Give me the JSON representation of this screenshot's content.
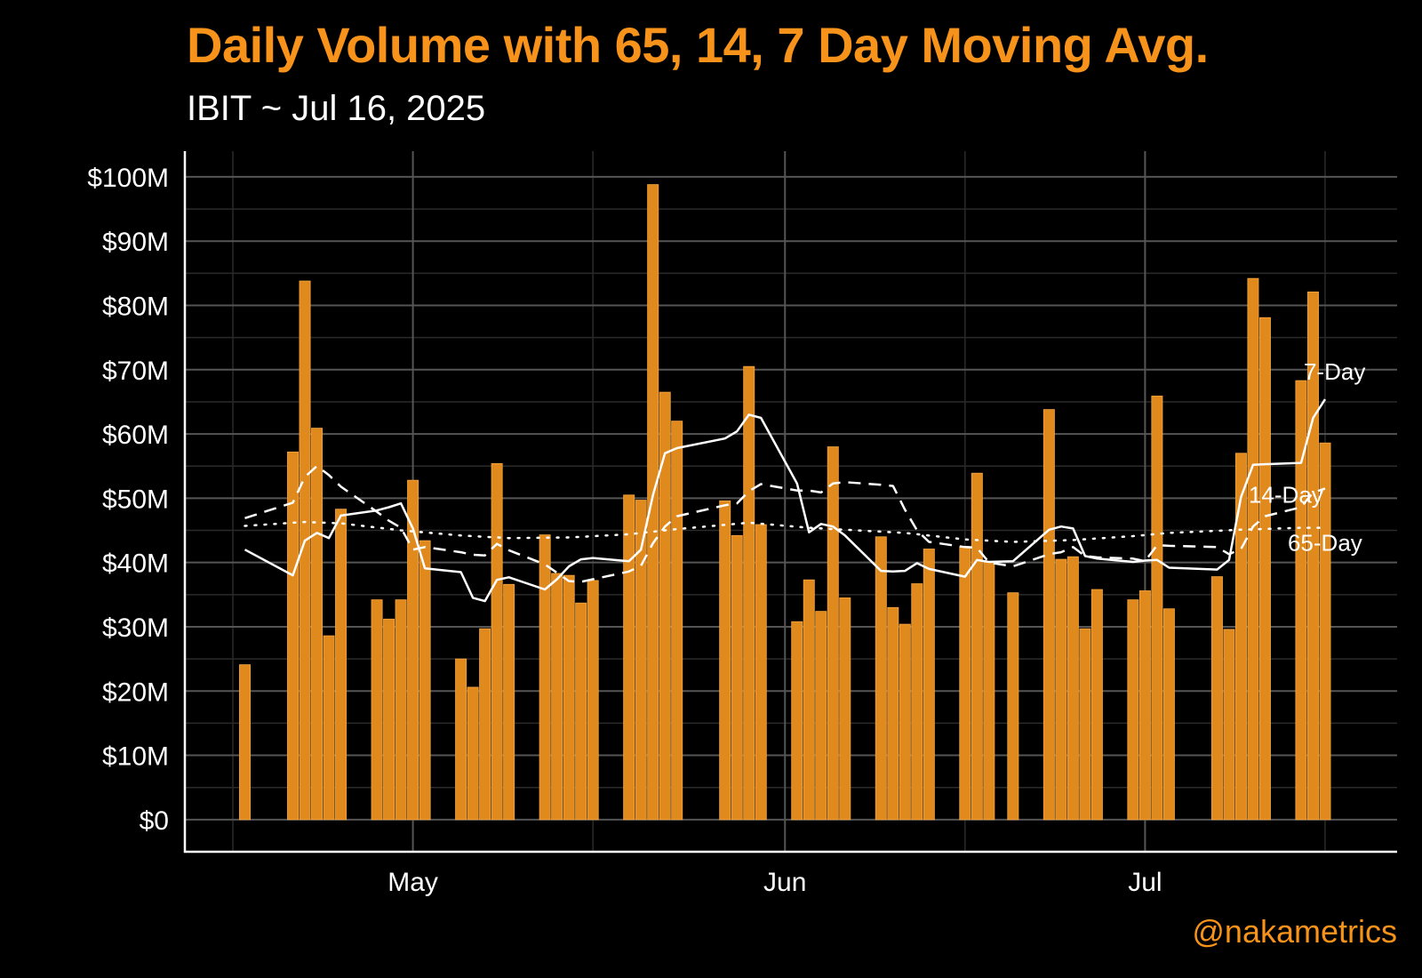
{
  "header": {
    "title": "Daily Volume with 65, 14, 7 Day Moving Avg.",
    "subtitle": "IBIT ~ Jul 16, 2025"
  },
  "footer": {
    "credit": "@nakametrics"
  },
  "colors": {
    "background": "#000000",
    "title": "#F7931A",
    "subtitle": "#FFFFFF",
    "bar": "#E08A1E",
    "bar_edge": "#F5A540",
    "line": "#FFFFFF",
    "grid_major": "#555555",
    "grid_minor": "#2B2B2B",
    "axis": "#FFFFFF",
    "tick_text": "#FFFFFF",
    "credit": "#F7931A"
  },
  "chart_data": {
    "type": "bar",
    "title": "Daily Volume with 65, 14, 7 Day Moving Avg.",
    "subtitle": "IBIT ~ Jul 16, 2025",
    "xlabel": "",
    "ylabel": "",
    "grid": true,
    "xlim": [
      "2025-04-12",
      "2025-07-22"
    ],
    "ylim": [
      -5,
      104
    ],
    "y_ticks": [
      0,
      10,
      20,
      30,
      40,
      50,
      60,
      70,
      80,
      90,
      100
    ],
    "y_tick_labels": [
      "$0",
      "$10M",
      "$20M",
      "$30M",
      "$40M",
      "$50M",
      "$60M",
      "$70M",
      "$80M",
      "$90M",
      "$100M"
    ],
    "x_ticks": [
      {
        "date": "2025-05-01",
        "label": "May"
      },
      {
        "date": "2025-06-01",
        "label": "Jun"
      },
      {
        "date": "2025-07-01",
        "label": "Jul"
      }
    ],
    "x_minor_ticks": [
      "2025-04-16",
      "2025-05-16",
      "2025-06-16",
      "2025-07-16"
    ],
    "volume": {
      "dates": [
        "2025-04-17",
        "2025-04-21",
        "2025-04-22",
        "2025-04-23",
        "2025-04-24",
        "2025-04-25",
        "2025-04-28",
        "2025-04-29",
        "2025-04-30",
        "2025-05-01",
        "2025-05-02",
        "2025-05-05",
        "2025-05-06",
        "2025-05-07",
        "2025-05-08",
        "2025-05-09",
        "2025-05-12",
        "2025-05-13",
        "2025-05-14",
        "2025-05-15",
        "2025-05-16",
        "2025-05-19",
        "2025-05-20",
        "2025-05-21",
        "2025-05-22",
        "2025-05-23",
        "2025-05-27",
        "2025-05-28",
        "2025-05-29",
        "2025-05-30",
        "2025-06-02",
        "2025-06-03",
        "2025-06-04",
        "2025-06-05",
        "2025-06-06",
        "2025-06-09",
        "2025-06-10",
        "2025-06-11",
        "2025-06-12",
        "2025-06-13",
        "2025-06-16",
        "2025-06-17",
        "2025-06-18",
        "2025-06-20",
        "2025-06-23",
        "2025-06-24",
        "2025-06-25",
        "2025-06-26",
        "2025-06-27",
        "2025-06-30",
        "2025-07-01",
        "2025-07-02",
        "2025-07-03",
        "2025-07-07",
        "2025-07-08",
        "2025-07-09",
        "2025-07-10",
        "2025-07-11",
        "2025-07-14",
        "2025-07-15",
        "2025-07-16"
      ],
      "values": [
        24.1,
        57.2,
        83.8,
        60.9,
        28.6,
        48.3,
        34.2,
        31.2,
        34.2,
        52.8,
        43.4,
        25.0,
        20.6,
        29.7,
        55.4,
        36.6,
        44.3,
        38.3,
        38.0,
        33.7,
        37.2,
        50.5,
        49.7,
        98.8,
        66.5,
        62.0,
        49.6,
        44.2,
        70.5,
        45.9,
        30.8,
        37.3,
        32.4,
        58.0,
        34.5,
        44.0,
        33.0,
        30.4,
        36.7,
        42.1,
        42.5,
        53.9,
        40.0,
        35.3,
        63.8,
        40.5,
        40.9,
        29.7,
        35.8,
        34.2,
        35.6,
        65.9,
        32.8,
        37.8,
        29.6,
        57.0,
        84.2,
        78.1,
        68.3,
        82.1,
        58.6
      ]
    },
    "series": [
      {
        "name": "7-Day",
        "style": "solid",
        "dates": [
          "2025-04-17",
          "2025-04-21",
          "2025-04-22",
          "2025-04-23",
          "2025-04-24",
          "2025-04-25",
          "2025-04-28",
          "2025-04-29",
          "2025-04-30",
          "2025-05-01",
          "2025-05-02",
          "2025-05-05",
          "2025-05-06",
          "2025-05-07",
          "2025-05-08",
          "2025-05-09",
          "2025-05-12",
          "2025-05-13",
          "2025-05-14",
          "2025-05-15",
          "2025-05-16",
          "2025-05-19",
          "2025-05-20",
          "2025-05-21",
          "2025-05-22",
          "2025-05-23",
          "2025-05-27",
          "2025-05-28",
          "2025-05-29",
          "2025-05-30",
          "2025-06-02",
          "2025-06-03",
          "2025-06-04",
          "2025-06-05",
          "2025-06-06",
          "2025-06-09",
          "2025-06-10",
          "2025-06-11",
          "2025-06-12",
          "2025-06-13",
          "2025-06-16",
          "2025-06-17",
          "2025-06-18",
          "2025-06-20",
          "2025-06-23",
          "2025-06-24",
          "2025-06-25",
          "2025-06-26",
          "2025-06-27",
          "2025-06-30",
          "2025-07-01",
          "2025-07-02",
          "2025-07-03",
          "2025-07-07",
          "2025-07-08",
          "2025-07-09",
          "2025-07-10",
          "2025-07-11",
          "2025-07-14",
          "2025-07-15",
          "2025-07-16"
        ],
        "values": [
          42.0,
          38.0,
          43.4,
          44.6,
          43.8,
          47.3,
          48.1,
          48.6,
          49.2,
          45.3,
          39.1,
          38.5,
          34.5,
          34.0,
          37.3,
          37.7,
          35.8,
          37.4,
          39.4,
          40.5,
          40.7,
          40.2,
          42.0,
          50.5,
          57.0,
          57.8,
          59.3,
          60.4,
          63.0,
          62.5,
          52.3,
          44.7,
          46.0,
          45.6,
          44.2,
          38.7,
          38.6,
          38.7,
          39.9,
          39.0,
          37.8,
          40.4,
          40.1,
          40.2,
          45.1,
          45.6,
          45.3,
          41.0,
          40.6,
          40.1,
          40.3,
          40.4,
          39.2,
          38.9,
          40.4,
          50.2,
          55.2,
          55.3,
          55.5,
          62.5,
          65.4
        ]
      },
      {
        "name": "14-Day",
        "style": "dashed",
        "dates": [
          "2025-04-17",
          "2025-04-21",
          "2025-04-22",
          "2025-04-23",
          "2025-04-24",
          "2025-04-25",
          "2025-04-28",
          "2025-04-29",
          "2025-04-30",
          "2025-05-01",
          "2025-05-02",
          "2025-05-05",
          "2025-05-06",
          "2025-05-07",
          "2025-05-08",
          "2025-05-09",
          "2025-05-12",
          "2025-05-13",
          "2025-05-14",
          "2025-05-15",
          "2025-05-16",
          "2025-05-19",
          "2025-05-20",
          "2025-05-21",
          "2025-05-22",
          "2025-05-23",
          "2025-05-27",
          "2025-05-28",
          "2025-05-29",
          "2025-05-30",
          "2025-06-02",
          "2025-06-03",
          "2025-06-04",
          "2025-06-05",
          "2025-06-06",
          "2025-06-09",
          "2025-06-10",
          "2025-06-11",
          "2025-06-12",
          "2025-06-13",
          "2025-06-16",
          "2025-06-17",
          "2025-06-18",
          "2025-06-20",
          "2025-06-23",
          "2025-06-24",
          "2025-06-25",
          "2025-06-26",
          "2025-06-27",
          "2025-06-30",
          "2025-07-01",
          "2025-07-02",
          "2025-07-03",
          "2025-07-07",
          "2025-07-08",
          "2025-07-09",
          "2025-07-10",
          "2025-07-11",
          "2025-07-14",
          "2025-07-15",
          "2025-07-16"
        ],
        "values": [
          46.9,
          49.3,
          53.3,
          55.0,
          53.6,
          51.8,
          47.9,
          46.5,
          45.4,
          42.0,
          42.4,
          41.6,
          41.2,
          41.1,
          42.9,
          41.9,
          39.7,
          38.4,
          37.1,
          37.0,
          37.4,
          38.6,
          39.5,
          43.0,
          45.6,
          47.2,
          48.9,
          49.2,
          51.1,
          52.2,
          51.2,
          51.2,
          50.9,
          52.3,
          52.5,
          52.1,
          51.9,
          48.2,
          45.0,
          43.2,
          42.4,
          42.3,
          40.0,
          39.4,
          41.3,
          41.6,
          42.4,
          41.0,
          40.8,
          40.6,
          40.2,
          42.7,
          42.6,
          42.4,
          41.3,
          42.1,
          45.6,
          47.2,
          48.6,
          50.9,
          51.5
        ]
      },
      {
        "name": "65-Day",
        "style": "dotted",
        "dates": [
          "2025-04-17",
          "2025-04-22",
          "2025-04-25",
          "2025-04-30",
          "2025-05-05",
          "2025-05-09",
          "2025-05-14",
          "2025-05-19",
          "2025-05-23",
          "2025-05-29",
          "2025-06-03",
          "2025-06-06",
          "2025-06-11",
          "2025-06-16",
          "2025-06-20",
          "2025-06-25",
          "2025-06-30",
          "2025-07-03",
          "2025-07-09",
          "2025-07-14",
          "2025-07-16"
        ],
        "values": [
          45.7,
          46.3,
          46.1,
          45.0,
          44.2,
          43.8,
          43.9,
          44.4,
          45.2,
          46.2,
          45.4,
          45.1,
          44.6,
          43.6,
          43.2,
          43.5,
          44.1,
          44.6,
          45.1,
          45.4,
          45.4
        ]
      }
    ]
  }
}
